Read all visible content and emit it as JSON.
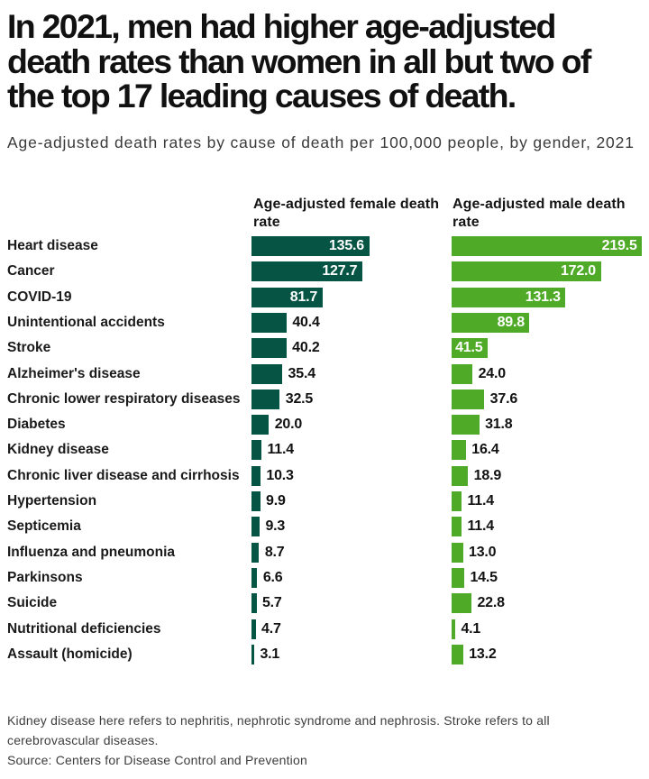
{
  "chart_data": {
    "type": "bar",
    "orientation": "horizontal",
    "title": "In 2021, men had higher age-adjusted death rates than women in all but two of the top 17 leading causes of death.",
    "subtitle": "Age-adjusted death rates by cause of death per 100,000 people, by gender, 2021",
    "categories": [
      "Heart disease",
      "Cancer",
      "COVID-19",
      "Unintentional accidents",
      "Stroke",
      "Alzheimer's disease",
      "Chronic lower respiratory diseases",
      "Diabetes",
      "Kidney disease",
      "Chronic liver disease and cirrhosis",
      "Hypertension",
      "Septicemia",
      "Influenza and pneumonia",
      "Parkinsons",
      "Suicide",
      "Nutritional deficiencies",
      "Assault (homicide)"
    ],
    "series": [
      {
        "name": "Age-adjusted female death rate",
        "color": "#055444",
        "values": [
          135.6,
          127.7,
          81.7,
          40.4,
          40.2,
          35.4,
          32.5,
          20.0,
          11.4,
          10.3,
          9.9,
          9.3,
          8.7,
          6.6,
          5.7,
          4.7,
          3.1
        ]
      },
      {
        "name": "Age-adjusted male death rate",
        "color": "#4faa27",
        "values": [
          219.5,
          172.0,
          131.3,
          89.8,
          41.5,
          24.0,
          37.6,
          31.8,
          16.4,
          18.9,
          11.4,
          11.4,
          13.0,
          14.5,
          22.8,
          4.1,
          13.2
        ]
      }
    ],
    "value_format": "1 decimal",
    "xlim": [
      0,
      219.5
    ],
    "label_inside_min": 41,
    "grid": false,
    "legend_position": "column headers above bars",
    "footnote": "Kidney disease here refers to nephritis, nephrotic syndrome and nephrosis. Stroke refers to all cerebrovascular diseases.",
    "source": "Source: Centers for Disease Control and Prevention"
  }
}
